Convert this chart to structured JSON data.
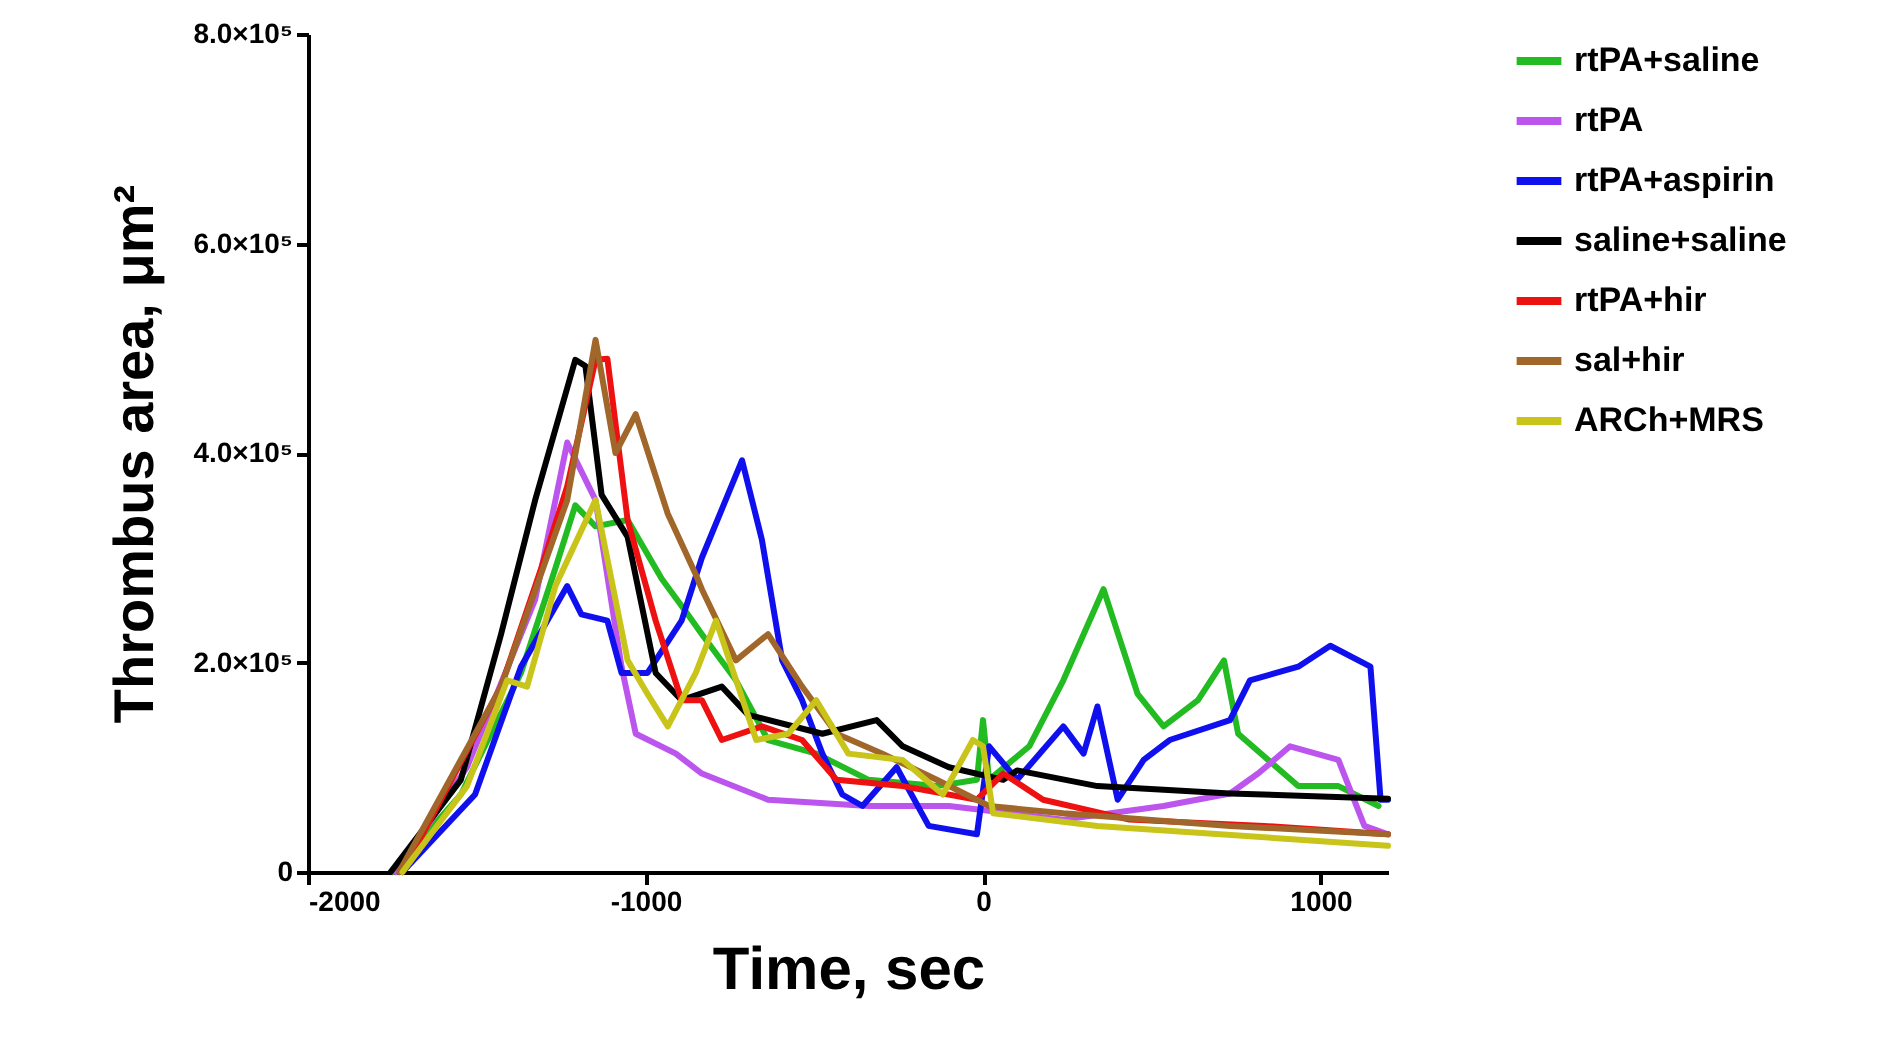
{
  "chart_data": {
    "type": "line",
    "xlabel": "Time, sec",
    "ylabel": "Thrombus area, μm²",
    "xlim": [
      -2000,
      1200
    ],
    "ylim": [
      0,
      800000
    ],
    "xticks": [
      -2000,
      -1000,
      0,
      1000
    ],
    "yticks": [
      0,
      {
        "value": 200000,
        "label": "2.0×10⁵"
      },
      {
        "value": 400000,
        "label": "4.0×10⁵"
      },
      {
        "value": 600000,
        "label": "6.0×10⁵"
      },
      {
        "value": 800000,
        "label": "8.0×10⁵"
      }
    ],
    "grid": false,
    "legend": "right",
    "marker": "none",
    "line_style": "solid",
    "series": [
      {
        "name": "rtPA+saline",
        "color": "#22bb22",
        "x": [
          -1750,
          -1547,
          -1369,
          -1267,
          -1208,
          -1148,
          -1053,
          -952,
          -875,
          -833,
          -732,
          -637,
          -494,
          -339,
          -137,
          -18,
          0,
          18,
          137,
          238,
          357,
          458,
          535,
          637,
          714,
          756,
          934,
          1053,
          1172
        ],
        "values": [
          0,
          74000,
          190000,
          290000,
          350000,
          330000,
          336000,
          280000,
          246000,
          227000,
          183000,
          126000,
          113000,
          88000,
          82000,
          88000,
          145000,
          88000,
          120000,
          183000,
          270000,
          170000,
          139000,
          164000,
          202000,
          132000,
          82000,
          82000,
          63000
        ]
      },
      {
        "name": "rtPA",
        "color": "#bb55ee",
        "x": [
          -1740,
          -1529,
          -1327,
          -1232,
          -1148,
          -1071,
          -1029,
          -910,
          -833,
          -637,
          -339,
          -101,
          238,
          535,
          732,
          815,
          910,
          1053,
          1130,
          1200
        ],
        "values": [
          0,
          100000,
          260000,
          410000,
          355000,
          196000,
          132000,
          113000,
          94000,
          69000,
          63000,
          63000,
          50000,
          63000,
          75000,
          94000,
          120000,
          107000,
          44000,
          36000
        ]
      },
      {
        "name": "rtPA+aspirin",
        "color": "#1010ee",
        "x": [
          -1720,
          -1505,
          -1369,
          -1232,
          -1190,
          -1113,
          -1071,
          -994,
          -893,
          -833,
          -714,
          -655,
          -595,
          -536,
          -476,
          -417,
          -357,
          -256,
          -161,
          -18,
          18,
          101,
          238,
          298,
          339,
          399,
          476,
          553,
          732,
          791,
          934,
          1029,
          1148,
          1178,
          1200
        ],
        "values": [
          0,
          74000,
          196000,
          273000,
          246000,
          240000,
          190000,
          190000,
          240000,
          300000,
          393000,
          317000,
          202000,
          164000,
          113000,
          74000,
          63000,
          100000,
          44000,
          36000,
          120000,
          88000,
          139000,
          113000,
          158000,
          69000,
          107000,
          126000,
          145000,
          183000,
          196000,
          216000,
          196000,
          69000,
          69000
        ]
      },
      {
        "name": "saline+saline",
        "color": "#000000",
        "x": [
          -1755,
          -1547,
          -1428,
          -1327,
          -1208,
          -1178,
          -1130,
          -1053,
          -970,
          -893,
          -774,
          -696,
          -476,
          -315,
          -238,
          -101,
          60,
          101,
          339,
          732,
          1200
        ],
        "values": [
          0,
          88000,
          227000,
          355000,
          489000,
          483000,
          360000,
          320000,
          190000,
          164000,
          177000,
          150000,
          132000,
          145000,
          120000,
          100000,
          88000,
          97000,
          82000,
          75000,
          70000
        ]
      },
      {
        "name": "rtPA+hir",
        "color": "#ee1111",
        "x": [
          -1720,
          -1428,
          -1309,
          -1232,
          -1148,
          -1113,
          -1053,
          -970,
          -893,
          -833,
          -774,
          -655,
          -536,
          -434,
          -238,
          -18,
          60,
          178,
          434,
          833,
          1200
        ],
        "values": [
          0,
          177000,
          290000,
          368000,
          489000,
          490000,
          336000,
          240000,
          164000,
          164000,
          126000,
          139000,
          126000,
          88000,
          82000,
          69000,
          94000,
          69000,
          50000,
          44000,
          36000
        ]
      },
      {
        "name": "sal+hir",
        "color": "#a0662a",
        "x": [
          -1730,
          -1428,
          -1232,
          -1148,
          -1089,
          -1029,
          -934,
          -851,
          -833,
          -732,
          -637,
          -536,
          -434,
          -298,
          -137,
          18,
          238,
          732,
          1200
        ],
        "values": [
          0,
          177000,
          355000,
          508000,
          400000,
          437000,
          342000,
          284000,
          270000,
          202000,
          227000,
          177000,
          132000,
          113000,
          88000,
          63000,
          56000,
          44000,
          36000
        ]
      },
      {
        "name": "ARCh+MRS",
        "color": "#c8c41a",
        "x": [
          -1720,
          -1529,
          -1410,
          -1351,
          -1267,
          -1148,
          -1053,
          -994,
          -934,
          -851,
          -791,
          -672,
          -577,
          -494,
          -399,
          -238,
          -119,
          -30,
          0,
          30,
          339,
          1200
        ],
        "values": [
          0,
          82000,
          183000,
          177000,
          273000,
          355000,
          202000,
          170000,
          139000,
          190000,
          240000,
          126000,
          132000,
          164000,
          113000,
          107000,
          74000,
          126000,
          120000,
          56000,
          44000,
          25000
        ]
      }
    ]
  }
}
